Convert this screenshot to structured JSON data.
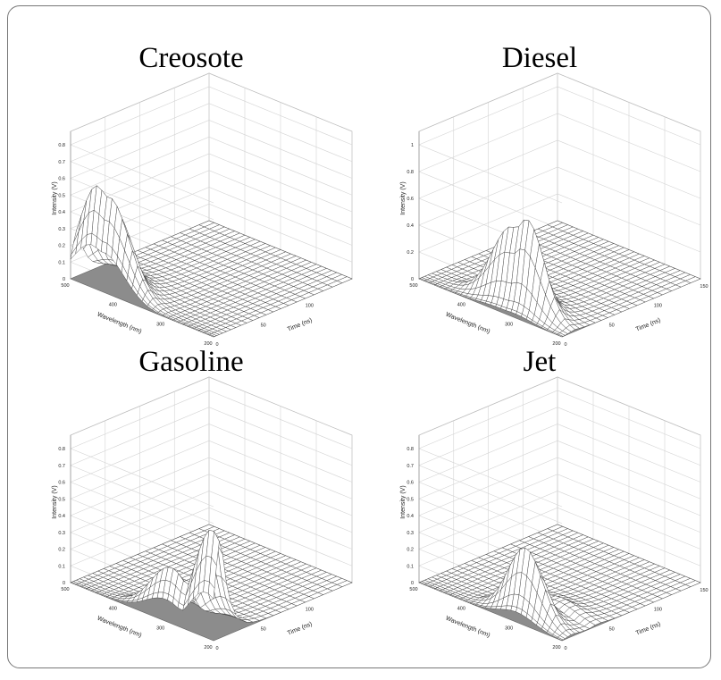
{
  "colors": {
    "frame": "#777777",
    "surface": "#ffffff",
    "floor": "#8c8c8c",
    "mesh": "#333333",
    "grid": "#d4d4d4"
  },
  "chart_data": [
    {
      "type": "surface3d",
      "title": "Creosote",
      "xlabel": "Wavelength (nm)",
      "ylabel": "Time (ns)",
      "zlabel": "Intensity (V)",
      "wavelength_ticks": [
        "500",
        "400",
        "300",
        "200"
      ],
      "time_ticks": [
        "0",
        "50",
        "100"
      ],
      "intensity_ticks": [
        "0",
        "0.1",
        "0.2",
        "0.3",
        "0.4",
        "0.5",
        "0.6",
        "0.7",
        "0.8"
      ],
      "wavelength_range": [
        500,
        200
      ],
      "time_range": [
        0,
        150
      ],
      "intensity_range": [
        0,
        0.8
      ],
      "grid": true,
      "peak": {
        "wavelength": 455,
        "time": 8,
        "intensity": 0.62
      },
      "secondary_peak": {
        "wavelength": 430,
        "time": 8,
        "intensity": 0.58
      }
    },
    {
      "type": "surface3d",
      "title": "Diesel",
      "xlabel": "Wavelength (nm)",
      "ylabel": "Time (ns)",
      "zlabel": "Intensity (V)",
      "wavelength_ticks": [
        "500",
        "400",
        "300",
        "200"
      ],
      "time_ticks": [
        "0",
        "50",
        "100",
        "150"
      ],
      "intensity_ticks": [
        "0",
        "0.2",
        "0.4",
        "0.6",
        "0.8",
        "1"
      ],
      "wavelength_range": [
        500,
        200
      ],
      "time_range": [
        0,
        150
      ],
      "intensity_range": [
        0,
        1
      ],
      "grid": true,
      "peak": {
        "wavelength": 300,
        "time": 15,
        "intensity": 0.7
      },
      "secondary_peak": {
        "wavelength": 330,
        "time": 15,
        "intensity": 0.6
      }
    },
    {
      "type": "surface3d",
      "title": "Gasoline",
      "xlabel": "Wavelength (nm)",
      "ylabel": "Time (ns)",
      "zlabel": "Intensity (V)",
      "wavelength_ticks": [
        "500",
        "400",
        "300",
        "200"
      ],
      "time_ticks": [
        "0",
        "50",
        "100"
      ],
      "intensity_ticks": [
        "0",
        "0.1",
        "0.2",
        "0.3",
        "0.4",
        "0.5",
        "0.6",
        "0.7",
        "0.8"
      ],
      "wavelength_range": [
        500,
        200
      ],
      "time_range": [
        0,
        150
      ],
      "intensity_range": [
        0,
        0.8
      ],
      "grid": true,
      "peak": {
        "wavelength": 215,
        "time": 8,
        "intensity": 0.66
      },
      "secondary_peak": {
        "wavelength": 300,
        "time": 8,
        "intensity": 0.32
      }
    },
    {
      "type": "surface3d",
      "title": "Jet",
      "xlabel": "Wavelength (nm)",
      "ylabel": "Time (ns)",
      "zlabel": "Intensity (V)",
      "wavelength_ticks": [
        "500",
        "400",
        "300",
        "200"
      ],
      "time_ticks": [
        "0",
        "50",
        "100",
        "150"
      ],
      "intensity_ticks": [
        "0",
        "0.1",
        "0.2",
        "0.3",
        "0.4",
        "0.5",
        "0.6",
        "0.7",
        "0.8"
      ],
      "wavelength_range": [
        500,
        200
      ],
      "time_range": [
        0,
        150
      ],
      "intensity_range": [
        0,
        0.8
      ],
      "grid": true,
      "peak": {
        "wavelength": 295,
        "time": 12,
        "intensity": 0.45
      },
      "secondary_peak": {
        "wavelength": 280,
        "time": 40,
        "intensity": 0.08
      }
    }
  ]
}
